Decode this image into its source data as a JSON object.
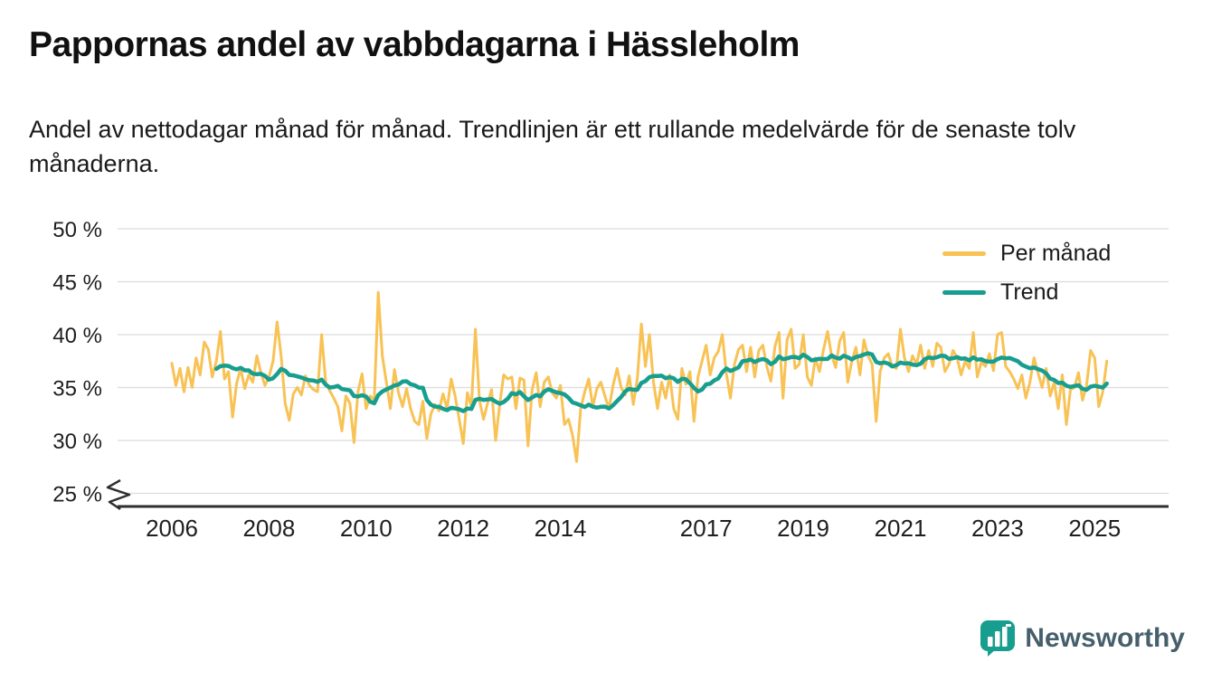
{
  "header": {
    "title": "Pappornas andel av vabbdagarna i Hässleholm",
    "subtitle": "Andel av nettodagar månad för månad. Trendlinjen är ett rullande medelvärde för de senaste tolv månaderna."
  },
  "legend": [
    {
      "label": "Per månad",
      "color": "#F8C255"
    },
    {
      "label": "Trend",
      "color": "#189E8E"
    }
  ],
  "brand": {
    "name": "Newsworthy",
    "icon_color": "#189E8E",
    "text_color": "#465F6B"
  },
  "colors": {
    "gridline": "#dcdcdc",
    "axis": "#2f2f2f",
    "tick_text": "#1f1f1f"
  },
  "chart_data": {
    "type": "line",
    "title": "Pappornas andel av vabbdagarna i Hässleholm",
    "x_start_year": 2006,
    "x_interval_months": 1,
    "ylim": [
      25,
      50
    ],
    "y_ticks": [
      25,
      30,
      35,
      40,
      45,
      50
    ],
    "y_tick_suffix": " %",
    "x_ticks": [
      2006,
      2008,
      2010,
      2012,
      2014,
      2017,
      2019,
      2021,
      2023,
      2025
    ],
    "axis_break": true,
    "grid": true,
    "legend_position": "top-right",
    "series": [
      {
        "name": "Per månad",
        "color": "#F8C255",
        "values": [
          37.3,
          35.2,
          36.8,
          34.6,
          36.9,
          35.0,
          37.8,
          36.2,
          39.3,
          38.6,
          36.0,
          37.5,
          40.3,
          35.8,
          36.5,
          32.2,
          35.4,
          36.8,
          34.9,
          36.2,
          35.5,
          38.0,
          36.4,
          35.2,
          36.0,
          37.5,
          41.2,
          38.0,
          33.5,
          31.9,
          34.4,
          35.0,
          34.3,
          36.1,
          35.2,
          34.8,
          34.6,
          40.0,
          35.5,
          34.7,
          34.0,
          33.2,
          30.9,
          34.2,
          33.5,
          29.8,
          34.6,
          36.3,
          33.0,
          34.2,
          33.8,
          44.0,
          38.0,
          35.5,
          33.0,
          36.7,
          34.5,
          33.2,
          34.9,
          33.0,
          31.8,
          31.5,
          33.7,
          30.2,
          32.5,
          33.4,
          32.8,
          34.4,
          33.0,
          35.8,
          34.2,
          32.0,
          29.7,
          34.5,
          33.2,
          40.5,
          33.8,
          32.0,
          33.5,
          34.8,
          30.0,
          33.4,
          36.2,
          35.8,
          36.0,
          33.0,
          35.9,
          35.7,
          29.5,
          34.8,
          36.4,
          33.2,
          35.5,
          36.0,
          34.5,
          34.0,
          35.2,
          31.5,
          32.0,
          30.5,
          28.0,
          33.0,
          34.6,
          35.8,
          33.2,
          34.9,
          35.5,
          34.2,
          33.0,
          35.2,
          36.8,
          35.0,
          34.3,
          36.1,
          33.4,
          35.8,
          41.0,
          37.0,
          40.0,
          35.5,
          33.0,
          35.5,
          34.0,
          36.2,
          33.0,
          32.0,
          36.8,
          35.3,
          36.5,
          31.8,
          36.0,
          37.5,
          39.0,
          36.2,
          37.8,
          38.4,
          40.0,
          36.3,
          34.0,
          37.2,
          38.6,
          39.0,
          36.5,
          38.8,
          36.0,
          38.5,
          39.0,
          37.0,
          35.6,
          38.9,
          40.2,
          34.0,
          39.5,
          40.5,
          36.8,
          37.2,
          40.0,
          36.0,
          35.2,
          37.8,
          36.5,
          38.6,
          40.3,
          38.0,
          36.9,
          39.4,
          40.2,
          35.5,
          37.5,
          38.8,
          36.2,
          39.5,
          38.0,
          37.2,
          31.8,
          36.5,
          37.8,
          38.2,
          37.0,
          36.8,
          40.5,
          37.8,
          36.5,
          38.0,
          37.2,
          39.0,
          36.8,
          38.5,
          37.0,
          39.2,
          38.8,
          36.5,
          37.2,
          38.5,
          37.8,
          36.2,
          37.5,
          36.8,
          40.2,
          36.0,
          37.4,
          37.0,
          38.2,
          36.6,
          40.0,
          40.2,
          37.0,
          36.5,
          35.8,
          34.9,
          36.2,
          34.0,
          35.5,
          37.8,
          36.4,
          35.0,
          36.8,
          34.2,
          35.5,
          33.0,
          36.2,
          31.5,
          34.8,
          35.0,
          36.4,
          33.8,
          35.2,
          38.5,
          37.8,
          33.2,
          34.6,
          37.5
        ]
      },
      {
        "name": "Trend",
        "color": "#189E8E",
        "derived": "rolling_mean_12_months"
      }
    ]
  }
}
